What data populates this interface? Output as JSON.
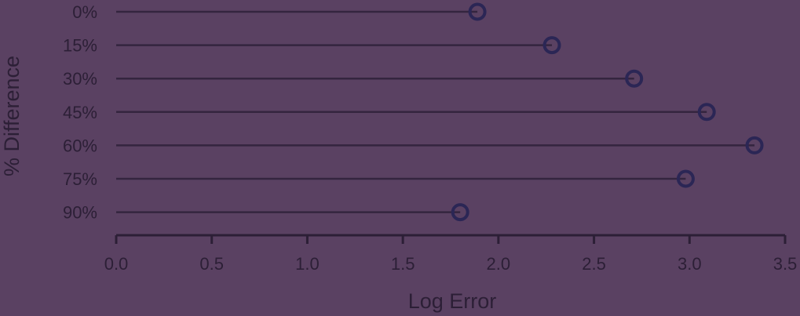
{
  "colors": {
    "background": "#5a4162",
    "stem": "#2e2139",
    "marker_stroke": "#2b2655",
    "text": "#2c1f36"
  },
  "chart_data": {
    "type": "lollipop",
    "orientation": "horizontal",
    "categories": [
      "0%",
      "15%",
      "30%",
      "45%",
      "60%",
      "75%",
      "90%"
    ],
    "values": [
      1.89,
      2.28,
      2.71,
      3.09,
      3.34,
      2.98,
      1.8
    ],
    "xlabel": "Log Error",
    "ylabel": "% Difference",
    "xlim": [
      0.0,
      3.5
    ],
    "xticks": [
      "0.0",
      "0.5",
      "1.0",
      "1.5",
      "2.0",
      "2.5",
      "3.0",
      "3.5"
    ],
    "grid": false,
    "legend": "none"
  }
}
